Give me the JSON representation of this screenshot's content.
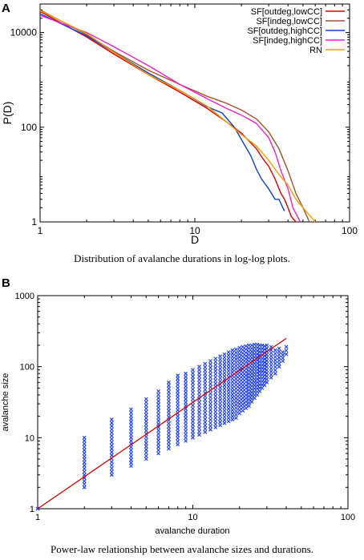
{
  "panels": {
    "a_label": "A",
    "b_label": "B"
  },
  "captions": {
    "a": "Distribution of avalanche durations in log-log plots.",
    "b": "Power-law relationship between avalanche sizes and durations."
  },
  "chart_data": [
    {
      "type": "line",
      "xlabel": "D",
      "ylabel": "P(D)",
      "xscale": "log",
      "yscale": "log",
      "xlim": [
        1,
        100
      ],
      "ylim": [
        1,
        40000
      ],
      "xticks": [
        "1",
        "10",
        "100"
      ],
      "yticks": [
        "1",
        "100",
        "10000"
      ],
      "legend_position": "top-right",
      "series": [
        {
          "name": "SF[outdeg,lowCC]",
          "color": "#dd0000",
          "x": [
            1,
            2,
            3,
            5,
            8,
            12,
            16,
            20,
            25,
            28,
            30,
            33,
            36,
            38,
            40,
            42,
            45
          ],
          "y": [
            28000,
            8000,
            3500,
            1300,
            550,
            250,
            130,
            75,
            35,
            20,
            15,
            8,
            4,
            3,
            2,
            1.3,
            1
          ]
        },
        {
          "name": "SF[indeg,lowCC]",
          "color": "#a0522d",
          "x": [
            1,
            2,
            3,
            5,
            8,
            12,
            16,
            20,
            25,
            30,
            35,
            40,
            45,
            50,
            55
          ],
          "y": [
            30000,
            9000,
            4000,
            1600,
            800,
            450,
            320,
            230,
            150,
            80,
            35,
            12,
            4,
            2,
            1
          ]
        },
        {
          "name": "SF[outdeg,highCC]",
          "color": "#1040d0",
          "x": [
            1,
            2,
            3,
            5,
            8,
            12,
            15,
            18,
            20,
            23,
            25,
            27,
            30,
            33,
            35,
            37,
            38
          ],
          "y": [
            25000,
            8500,
            3800,
            1400,
            600,
            270,
            200,
            100,
            55,
            25,
            13,
            8,
            5,
            3,
            3,
            2,
            1.7
          ]
        },
        {
          "name": "SF[indeg,highCC]",
          "color": "#ee22cc",
          "x": [
            1,
            2,
            3,
            5,
            8,
            12,
            16,
            20,
            25,
            30,
            33,
            36,
            40,
            43,
            45,
            48
          ],
          "y": [
            23000,
            10000,
            5000,
            2000,
            800,
            400,
            250,
            180,
            120,
            60,
            30,
            12,
            5,
            2,
            1.5,
            1
          ]
        },
        {
          "name": "RN",
          "color": "#f0a000",
          "x": [
            1,
            2,
            3,
            5,
            8,
            12,
            16,
            20,
            25,
            30,
            35,
            40,
            45,
            50,
            55,
            60
          ],
          "y": [
            29000,
            9500,
            3800,
            1300,
            600,
            280,
            130,
            70,
            40,
            20,
            10,
            6,
            3,
            2,
            1.4,
            1
          ]
        }
      ]
    },
    {
      "type": "scatter",
      "xlabel": "avalanche duration",
      "ylabel": "avalanche size",
      "xscale": "log",
      "yscale": "log",
      "xlim": [
        1,
        100
      ],
      "ylim": [
        1,
        1000
      ],
      "xticks": [
        "1",
        "10",
        "100"
      ],
      "yticks": [
        "1",
        "10",
        "100",
        "1000"
      ],
      "point_color": "#1a3cff",
      "fit_line_color": "#dd0000",
      "fit_line": {
        "x": [
          1,
          40
        ],
        "y": [
          1,
          250
        ]
      },
      "columns": [
        {
          "x": 1,
          "ymin": 1,
          "ymax": 1
        },
        {
          "x": 2,
          "ymin": 2,
          "ymax": 10
        },
        {
          "x": 3,
          "ymin": 3,
          "ymax": 18
        },
        {
          "x": 4,
          "ymin": 4,
          "ymax": 25
        },
        {
          "x": 5,
          "ymin": 5,
          "ymax": 35
        },
        {
          "x": 6,
          "ymin": 6,
          "ymax": 45
        },
        {
          "x": 7,
          "ymin": 7,
          "ymax": 60
        },
        {
          "x": 8,
          "ymin": 8,
          "ymax": 75
        },
        {
          "x": 9,
          "ymin": 9,
          "ymax": 80
        },
        {
          "x": 10,
          "ymin": 10,
          "ymax": 90
        },
        {
          "x": 11,
          "ymin": 11,
          "ymax": 100
        },
        {
          "x": 12,
          "ymin": 12,
          "ymax": 110
        },
        {
          "x": 13,
          "ymin": 13,
          "ymax": 120
        },
        {
          "x": 14,
          "ymin": 14,
          "ymax": 130
        },
        {
          "x": 15,
          "ymin": 15,
          "ymax": 140
        },
        {
          "x": 16,
          "ymin": 16,
          "ymax": 150
        },
        {
          "x": 17,
          "ymin": 17,
          "ymax": 160
        },
        {
          "x": 18,
          "ymin": 18,
          "ymax": 170
        },
        {
          "x": 19,
          "ymin": 19,
          "ymax": 175
        },
        {
          "x": 20,
          "ymin": 22,
          "ymax": 185
        },
        {
          "x": 21,
          "ymin": 24,
          "ymax": 190
        },
        {
          "x": 22,
          "ymin": 26,
          "ymax": 195
        },
        {
          "x": 23,
          "ymin": 28,
          "ymax": 200
        },
        {
          "x": 24,
          "ymin": 32,
          "ymax": 200
        },
        {
          "x": 25,
          "ymin": 36,
          "ymax": 205
        },
        {
          "x": 26,
          "ymin": 40,
          "ymax": 205
        },
        {
          "x": 27,
          "ymin": 45,
          "ymax": 200
        },
        {
          "x": 28,
          "ymin": 50,
          "ymax": 200
        },
        {
          "x": 29,
          "ymin": 55,
          "ymax": 195
        },
        {
          "x": 30,
          "ymin": 60,
          "ymax": 200
        },
        {
          "x": 32,
          "ymin": 70,
          "ymax": 190
        },
        {
          "x": 34,
          "ymin": 80,
          "ymax": 170
        },
        {
          "x": 36,
          "ymin": 100,
          "ymax": 180
        },
        {
          "x": 38,
          "ymin": 120,
          "ymax": 160
        },
        {
          "x": 40,
          "ymin": 150,
          "ymax": 190
        }
      ]
    }
  ]
}
